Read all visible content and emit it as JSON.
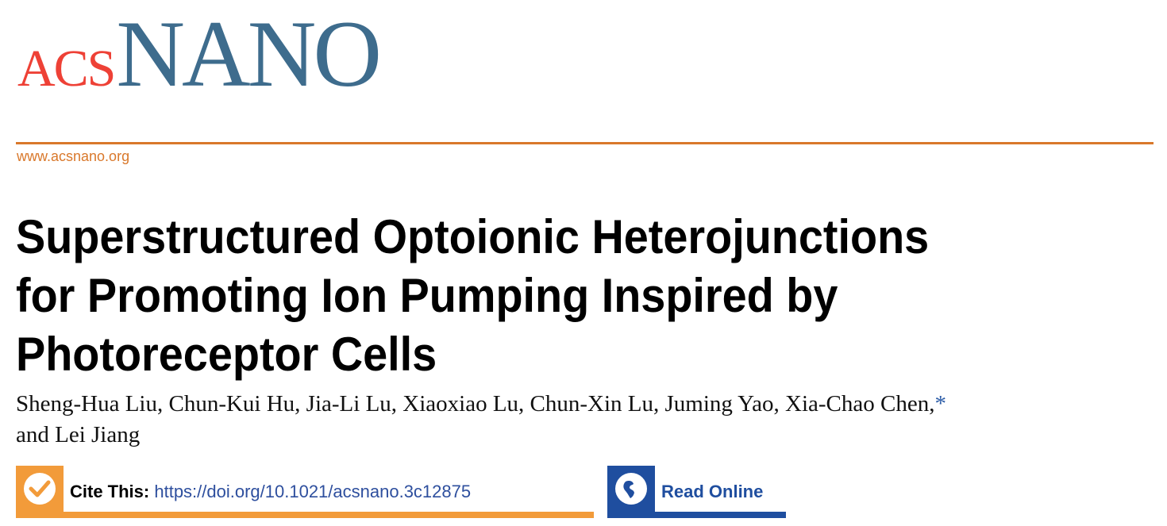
{
  "journal": {
    "logo_acs": "ACS",
    "logo_nano": "NANO",
    "url": "www.acsnano.org",
    "colors": {
      "acs_red": "#ee4136",
      "nano_blue": "#3e6c8d",
      "rule_orange": "#d9782b"
    }
  },
  "article": {
    "title_lines": [
      "Superstructured Optoionic Heterojunctions",
      "for Promoting Ion Pumping Inspired by",
      "Photoreceptor Cells"
    ],
    "authors_line1": "Sheng-Hua Liu, Chun-Kui Hu, Jia-Li Lu, Xiaoxiao Lu, Chun-Xin Lu, Juming Yao, Xia-Chao Chen,",
    "corresponding_mark": "*",
    "authors_line2": "and Lei Jiang"
  },
  "cite": {
    "label": "Cite This:",
    "doi": "https://doi.org/10.1021/acsnano.3c12875",
    "icon": "checkmark-icon",
    "color": "#f29b3a"
  },
  "read_online": {
    "label": "Read Online",
    "icon": "globe-icon",
    "color": "#1f4e9f"
  }
}
